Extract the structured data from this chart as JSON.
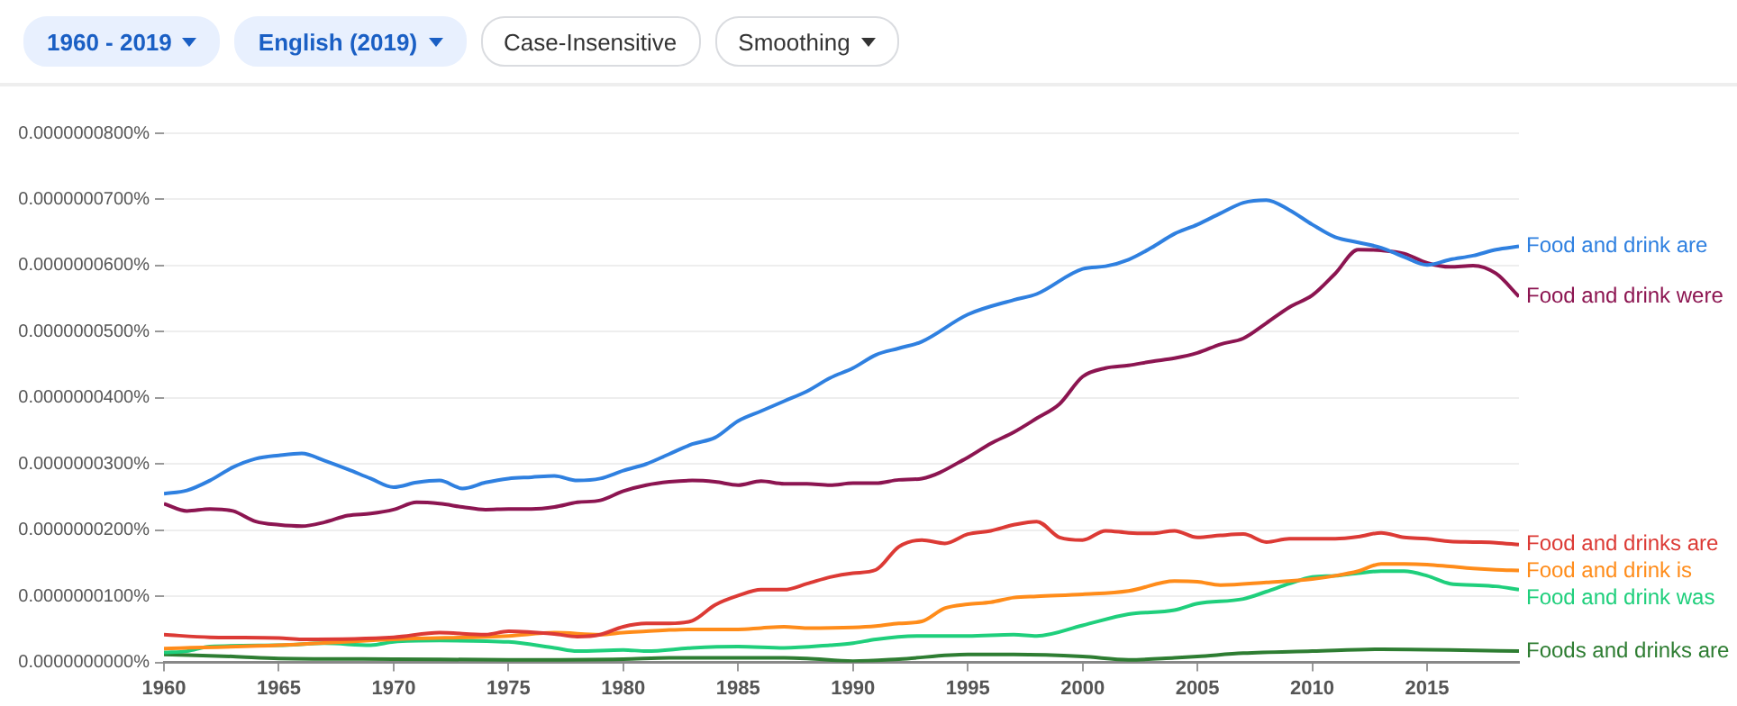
{
  "chart_data": {
    "type": "line",
    "annotations": [
      "1960 - 2019",
      "English (2019)",
      "Case-Insensitive",
      "Smoothing"
    ],
    "xlim": [
      1960,
      2019
    ],
    "xticks": [
      1960,
      1965,
      1970,
      1975,
      1980,
      1985,
      1990,
      1995,
      2000,
      2005,
      2010,
      2015
    ],
    "ylim": [
      0,
      8e-08
    ],
    "yticks": [
      {
        "value": 0,
        "label": "0.0000000000%"
      },
      {
        "value": 1e-08,
        "label": "0.0000000100%"
      },
      {
        "value": 2e-08,
        "label": "0.0000000200%"
      },
      {
        "value": 3e-08,
        "label": "0.0000000300%"
      },
      {
        "value": 4e-08,
        "label": "0.0000000400%"
      },
      {
        "value": 5e-08,
        "label": "0.0000000500%"
      },
      {
        "value": 6e-08,
        "label": "0.0000000600%"
      },
      {
        "value": 7e-08,
        "label": "0.0000000700%"
      },
      {
        "value": 8e-08,
        "label": "0.0000000800%"
      }
    ],
    "grid": "y",
    "marker": "none",
    "line_style": "solid",
    "series": [
      {
        "name": "Food and drink are",
        "color": "#2f80e0",
        "x": [
          1960,
          1961,
          1962,
          1963,
          1964,
          1965,
          1966,
          1967,
          1968,
          1969,
          1970,
          1971,
          1972,
          1973,
          1974,
          1975,
          1976,
          1977,
          1978,
          1979,
          1980,
          1981,
          1982,
          1983,
          1984,
          1985,
          1986,
          1987,
          1988,
          1989,
          1990,
          1991,
          1992,
          1993,
          1995,
          1997,
          1998,
          2000,
          2001,
          2002,
          2003,
          2004,
          2005,
          2006,
          2007,
          2008,
          2009,
          2010,
          2011,
          2012,
          2013,
          2014,
          2015,
          2016,
          2017,
          2018,
          2019
        ],
        "values": [
          2.55e-08,
          2.6e-08,
          2.75e-08,
          2.95e-08,
          3.08e-08,
          3.13e-08,
          3.16e-08,
          3.05e-08,
          2.92e-08,
          2.78e-08,
          2.65e-08,
          2.72e-08,
          2.75e-08,
          2.63e-08,
          2.72e-08,
          2.78e-08,
          2.8e-08,
          2.82e-08,
          2.75e-08,
          2.78e-08,
          2.9e-08,
          3e-08,
          3.15e-08,
          3.3e-08,
          3.4e-08,
          3.65e-08,
          3.8e-08,
          3.95e-08,
          4.1e-08,
          4.3e-08,
          4.45e-08,
          4.65e-08,
          4.75e-08,
          4.85e-08,
          5.26e-08,
          5.48e-08,
          5.57e-08,
          5.95e-08,
          5.99e-08,
          6.09e-08,
          6.27e-08,
          6.48e-08,
          6.62e-08,
          6.79e-08,
          6.95e-08,
          6.99e-08,
          6.84e-08,
          6.62e-08,
          6.43e-08,
          6.35e-08,
          6.27e-08,
          6.13e-08,
          6.01e-08,
          6.09e-08,
          6.15e-08,
          6.24e-08,
          6.29e-08
        ]
      },
      {
        "name": "Food and drink were",
        "color": "#8c1551",
        "x": [
          1960,
          1961,
          1962,
          1963,
          1964,
          1965,
          1966,
          1967,
          1968,
          1969,
          1970,
          1971,
          1972,
          1973,
          1974,
          1975,
          1976,
          1977,
          1978,
          1979,
          1980,
          1981,
          1982,
          1983,
          1984,
          1985,
          1986,
          1987,
          1988,
          1989,
          1990,
          1991,
          1992,
          1993,
          1995,
          1996,
          1997,
          1998,
          1999,
          2000,
          2001,
          2002,
          2003,
          2004,
          2005,
          2006,
          2007,
          2008,
          2009,
          2010,
          2011,
          2012,
          2013,
          2014,
          2015,
          2016,
          2017,
          2018,
          2019
        ],
        "values": [
          2.4e-08,
          2.29e-08,
          2.32e-08,
          2.29e-08,
          2.13e-08,
          2.08e-08,
          2.06e-08,
          2.12e-08,
          2.22e-08,
          2.25e-08,
          2.31e-08,
          2.42e-08,
          2.4e-08,
          2.35e-08,
          2.31e-08,
          2.32e-08,
          2.32e-08,
          2.35e-08,
          2.42e-08,
          2.45e-08,
          2.59e-08,
          2.68e-08,
          2.73e-08,
          2.75e-08,
          2.73e-08,
          2.68e-08,
          2.74e-08,
          2.7e-08,
          2.7e-08,
          2.68e-08,
          2.71e-08,
          2.71e-08,
          2.76e-08,
          2.78e-08,
          3.1e-08,
          3.31e-08,
          3.48e-08,
          3.69e-08,
          3.91e-08,
          4.32e-08,
          4.45e-08,
          4.49e-08,
          4.55e-08,
          4.6e-08,
          4.68e-08,
          4.81e-08,
          4.9e-08,
          5.13e-08,
          5.37e-08,
          5.55e-08,
          5.88e-08,
          6.24e-08,
          6.23e-08,
          6.18e-08,
          6.04e-08,
          5.98e-08,
          6e-08,
          5.88e-08,
          5.53e-08
        ]
      },
      {
        "name": "Food and drinks are",
        "color": "#dc3a35",
        "x": [
          1960,
          1962,
          1965,
          1966,
          1970,
          1972,
          1974,
          1975,
          1977,
          1978,
          1979,
          1980,
          1981,
          1982,
          1983,
          1984,
          1985,
          1986,
          1987,
          1988,
          1989,
          1990,
          1991,
          1992,
          1993,
          1994,
          1995,
          1996,
          1997,
          1998,
          1999,
          2000,
          2001,
          2002,
          2003,
          2004,
          2005,
          2006,
          2007,
          2008,
          2009,
          2010,
          2011,
          2012,
          2013,
          2014,
          2015,
          2016,
          2017,
          2018,
          2019
        ],
        "values": [
          4.2e-09,
          3.8e-09,
          3.7e-09,
          3.5e-09,
          3.8e-09,
          4.5e-09,
          4.2e-09,
          4.7e-09,
          4.3e-09,
          3.9e-09,
          4.2e-09,
          5.4e-09,
          5.9e-09,
          5.9e-09,
          6.3e-09,
          8.7e-09,
          1.01e-08,
          1.1e-08,
          1.1e-08,
          1.19e-08,
          1.29e-08,
          1.35e-08,
          1.4e-08,
          1.75e-08,
          1.85e-08,
          1.8e-08,
          1.94e-08,
          1.99e-08,
          2.08e-08,
          2.13e-08,
          1.89e-08,
          1.85e-08,
          1.99e-08,
          1.96e-08,
          1.95e-08,
          1.99e-08,
          1.89e-08,
          1.92e-08,
          1.94e-08,
          1.82e-08,
          1.87e-08,
          1.87e-08,
          1.87e-08,
          1.9e-08,
          1.96e-08,
          1.89e-08,
          1.87e-08,
          1.83e-08,
          1.82e-08,
          1.81e-08,
          1.78e-08
        ]
      },
      {
        "name": "Food and drink is",
        "color": "#ff8c1a",
        "x": [
          1960,
          1965,
          1970,
          1975,
          1977,
          1979,
          1980,
          1981,
          1982,
          1983,
          1985,
          1986,
          1987,
          1988,
          1990,
          1991,
          1992,
          1993,
          1994,
          1995,
          1996,
          1997,
          1998,
          2000,
          2002,
          2004,
          2005,
          2006,
          2008,
          2010,
          2011,
          2012,
          2013,
          2014,
          2015,
          2016,
          2017,
          2018,
          2019
        ],
        "values": [
          2.1e-09,
          2.6e-09,
          3.5e-09,
          4e-09,
          4.5e-09,
          4.2e-09,
          4.5e-09,
          4.7e-09,
          4.9e-09,
          5e-09,
          5e-09,
          5.2e-09,
          5.4e-09,
          5.2e-09,
          5.3e-09,
          5.5e-09,
          5.9e-09,
          6.2e-09,
          8.2e-09,
          8.8e-09,
          9.1e-09,
          9.8e-09,
          1e-08,
          1.03e-08,
          1.08e-08,
          1.23e-08,
          1.22e-08,
          1.17e-08,
          1.21e-08,
          1.26e-08,
          1.31e-08,
          1.38e-08,
          1.49e-08,
          1.49e-08,
          1.48e-08,
          1.45e-08,
          1.42e-08,
          1.4e-08,
          1.39e-08
        ]
      },
      {
        "name": "Food and drink was",
        "color": "#1fcf7c",
        "x": [
          1960,
          1961,
          1962,
          1965,
          1967,
          1969,
          1970,
          1972,
          1975,
          1977,
          1978,
          1980,
          1981,
          1983,
          1985,
          1987,
          1989,
          1990,
          1991,
          1993,
          1995,
          1997,
          1998,
          2000,
          2002,
          2004,
          2005,
          2007,
          2008,
          2009,
          2010,
          2011,
          2012,
          2013,
          2014,
          2015,
          2016,
          2017,
          2018,
          2019
        ],
        "values": [
          1.5e-09,
          1.7e-09,
          2.4e-09,
          2.6e-09,
          2.9e-09,
          2.6e-09,
          3.1e-09,
          3.3e-09,
          3.1e-09,
          2.2e-09,
          1.7e-09,
          1.9e-09,
          1.7e-09,
          2.2e-09,
          2.4e-09,
          2.2e-09,
          2.6e-09,
          2.9e-09,
          3.5e-09,
          4e-09,
          4e-09,
          4.2e-09,
          4e-09,
          5.6e-09,
          7.3e-09,
          7.9e-09,
          8.9e-09,
          9.6e-09,
          1.07e-08,
          1.19e-08,
          1.29e-08,
          1.31e-08,
          1.35e-08,
          1.38e-08,
          1.38e-08,
          1.31e-08,
          1.19e-08,
          1.17e-08,
          1.15e-08,
          1.1e-08
        ]
      },
      {
        "name": "Foods and drinks are",
        "color": "#2e7d32",
        "x": [
          1960,
          1963,
          1965,
          1970,
          1975,
          1980,
          1982,
          1985,
          1987,
          1988,
          1990,
          1992,
          1995,
          1997,
          2000,
          2002,
          2004,
          2005,
          2007,
          2010,
          2013,
          2016,
          2019
        ],
        "values": [
          1.2e-09,
          9e-10,
          6e-10,
          5e-10,
          4e-10,
          5e-10,
          7e-10,
          7e-10,
          7e-10,
          6e-10,
          2e-10,
          5e-10,
          1.2e-09,
          1.2e-09,
          9e-10,
          4e-10,
          7e-10,
          9e-10,
          1.4e-09,
          1.7e-09,
          2e-09,
          1.9e-09,
          1.7e-09
        ]
      }
    ]
  }
}
